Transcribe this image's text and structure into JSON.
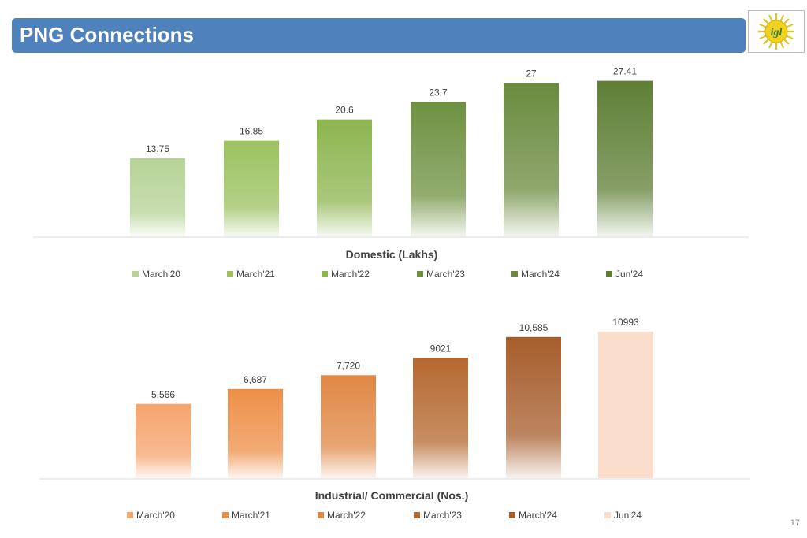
{
  "header": {
    "title": "PNG Connections"
  },
  "logo": {
    "text": "igl",
    "icon": "igl-sun-logo-icon"
  },
  "footer": {
    "page_number": "17"
  },
  "chart_data": [
    {
      "type": "bar",
      "title": "Domestic (Lakhs)",
      "categories": [
        "March'20",
        "March'21",
        "March'22",
        "March'23",
        "March'24",
        "Jun'24"
      ],
      "values": [
        13.75,
        16.85,
        20.6,
        23.7,
        27,
        27.41
      ],
      "data_labels": [
        "13.75",
        "16.85",
        "20.6",
        "23.7",
        "27",
        "27.41"
      ],
      "ylim": [
        0,
        30
      ],
      "grid": false,
      "legend_position": "bottom",
      "colors": [
        "#b6d396",
        "#9bc25f",
        "#8db54f",
        "#6e9140",
        "#6a8b3e",
        "#5e7f35"
      ]
    },
    {
      "type": "bar",
      "title": "Industrial/ Commercial (Nos.)",
      "categories": [
        "March'20",
        "March'21",
        "March'22",
        "March'23",
        "March'24",
        "Jun'24"
      ],
      "values": [
        5566,
        6687,
        7720,
        9021,
        10585,
        10993
      ],
      "data_labels": [
        "5,566",
        "6,687",
        "7,720",
        "9021",
        "10,585",
        "10993"
      ],
      "ylim": [
        0,
        12700
      ],
      "grid": false,
      "legend_position": "bottom",
      "colors": [
        "#f5a46d",
        "#ee8f48",
        "#e18745",
        "#b5682f",
        "#a65d2b",
        "#fbddcc"
      ]
    }
  ]
}
